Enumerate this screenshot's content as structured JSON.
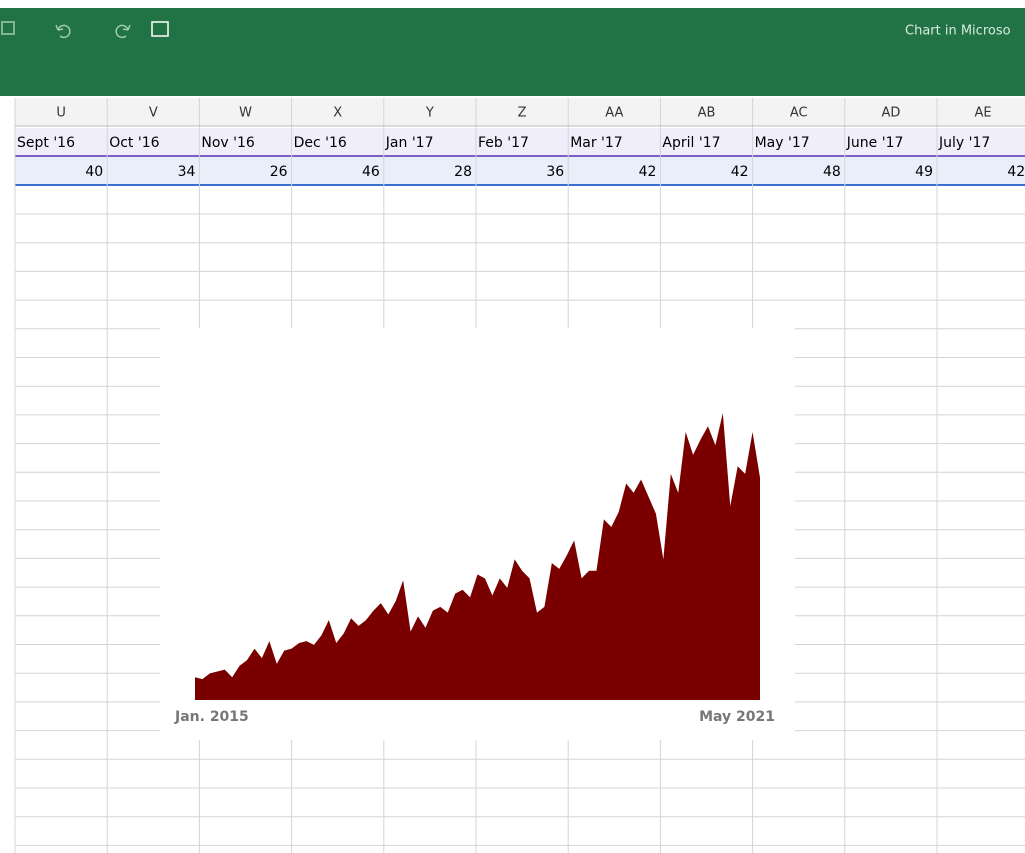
{
  "window": {
    "title": "Chart in Microso"
  },
  "sheet": {
    "columns": [
      "U",
      "V",
      "W",
      "X",
      "Y",
      "Z",
      "AA",
      "AB",
      "AC",
      "AD",
      "AE"
    ],
    "months": [
      "Sept '16",
      "Oct '16",
      "Nov '16",
      "Dec '16",
      "Jan '17",
      "Feb '17",
      "Mar '17",
      "April '17",
      "May '17",
      "June '17",
      "July '17"
    ],
    "values": [
      40,
      34,
      26,
      46,
      28,
      36,
      42,
      42,
      48,
      49,
      42
    ]
  },
  "chart_data": {
    "type": "area",
    "color": "#7a0000",
    "categories": [
      "Jan. 2015",
      null,
      null,
      null,
      null,
      null,
      null,
      null,
      null,
      null,
      null,
      null,
      null,
      null,
      null,
      null,
      null,
      null,
      null,
      null,
      null,
      null,
      null,
      null,
      null,
      null,
      null,
      null,
      null,
      null,
      null,
      null,
      null,
      null,
      null,
      null,
      null,
      null,
      null,
      null,
      null,
      null,
      null,
      null,
      null,
      null,
      null,
      null,
      null,
      null,
      null,
      null,
      null,
      null,
      null,
      null,
      null,
      null,
      null,
      null,
      null,
      null,
      null,
      null,
      null,
      null,
      null,
      null,
      null,
      null,
      null,
      null,
      null,
      null,
      null,
      null,
      "May 2021"
    ],
    "values": [
      12,
      11,
      14,
      15,
      16,
      12,
      18,
      21,
      27,
      22,
      31,
      19,
      26,
      27,
      30,
      31,
      29,
      34,
      42,
      30,
      35,
      43,
      39,
      42,
      47,
      51,
      45,
      52,
      63,
      36,
      44,
      38,
      47,
      49,
      46,
      56,
      58,
      54,
      66,
      64,
      55,
      64,
      59,
      74,
      68,
      64,
      46,
      49,
      72,
      69,
      76,
      84,
      64,
      68,
      68,
      95,
      91,
      99,
      114,
      109,
      116,
      107,
      98,
      74,
      119,
      109,
      141,
      129,
      137,
      144,
      134,
      151,
      102,
      123,
      119,
      141,
      117
    ]
  }
}
